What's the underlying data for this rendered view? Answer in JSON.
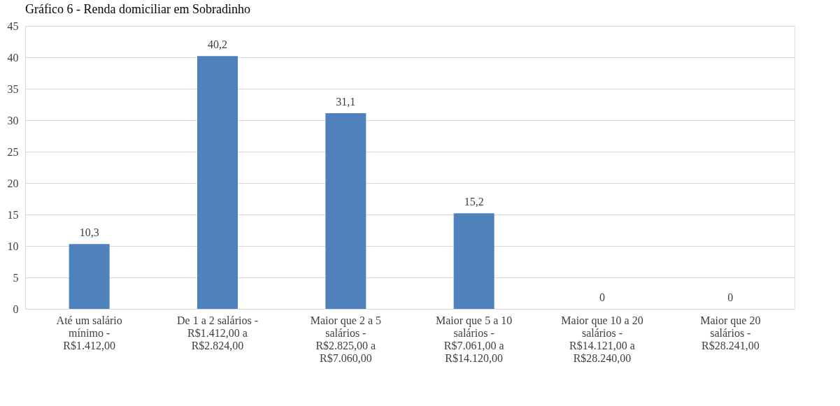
{
  "chart_data": {
    "type": "bar",
    "title": "Gráfico 6 - Renda domiciliar em Sobradinho",
    "categories": [
      "Até um salário\nmínimo -\nR$1.412,00",
      "De 1 a 2 salários -\nR$1.412,00 a\nR$2.824,00",
      "Maior que 2 a 5\nsalários -\nR$2.825,00 a\nR$7.060,00",
      "Maior que 5 a 10\nsalários -\nR$7.061,00 a\nR$14.120,00",
      "Maior que 10 a 20\nsalários -\nR$14.121,00 a\nR$28.240,00",
      "Maior que 20\nsalários -\nR$28.241,00"
    ],
    "values": [
      10.3,
      40.2,
      31.1,
      15.2,
      0,
      0
    ],
    "value_labels": [
      "10,3",
      "40,2",
      "31,1",
      "15,2",
      "0",
      "0"
    ],
    "color": "#4f81bd",
    "ylim": [
      0,
      45
    ],
    "yticks": [
      0,
      5,
      10,
      15,
      20,
      25,
      30,
      35,
      40,
      45
    ],
    "grid": "y"
  }
}
